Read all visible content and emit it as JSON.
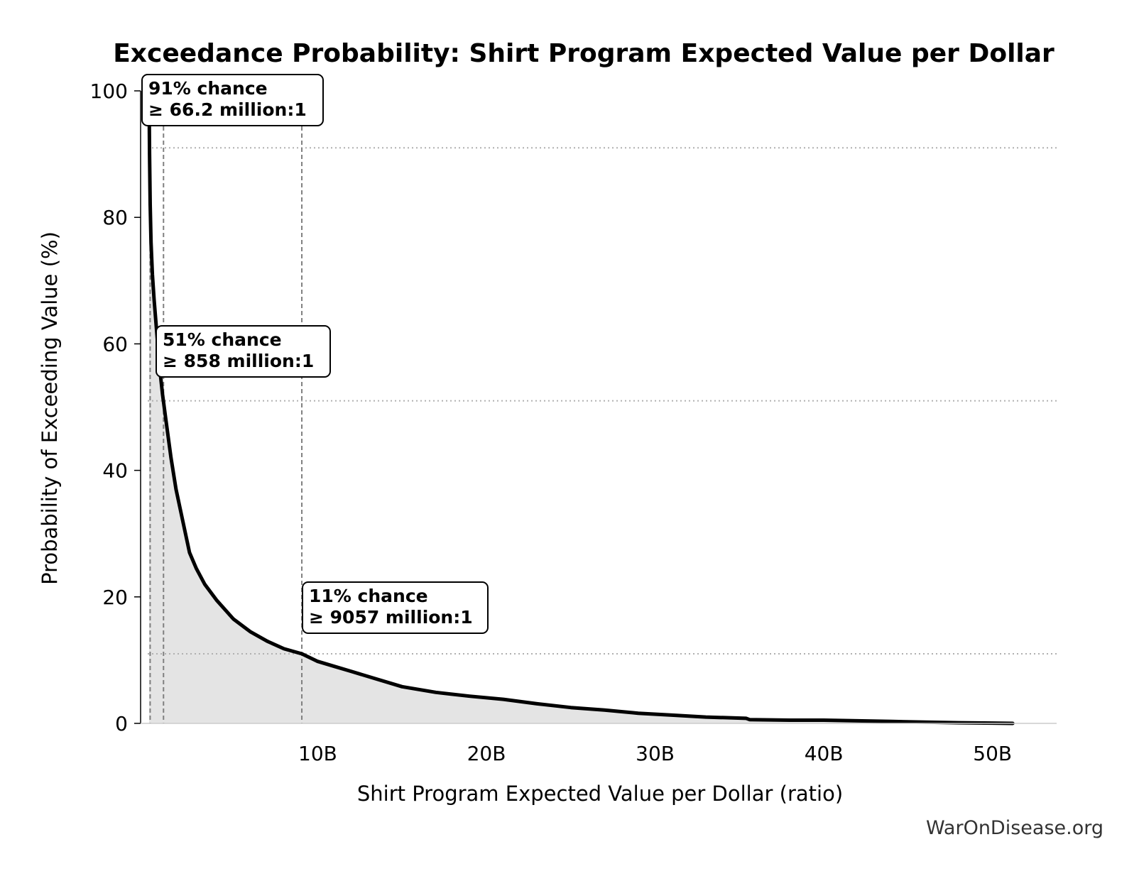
{
  "chart_data": {
    "type": "area",
    "title": "Exceedance Probability: Shirt Program Expected Value per Dollar",
    "xlabel": "Shirt Program Expected Value per Dollar (ratio)",
    "ylabel": "Probability of Exceeding Value (%)",
    "xlim": [
      -0.5,
      53.8
    ],
    "ylim": [
      0,
      100
    ],
    "x_unit": "billions (ratio)",
    "x_ticks": [
      {
        "value": 10,
        "label": "10B"
      },
      {
        "value": 20,
        "label": "20B"
      },
      {
        "value": 30,
        "label": "30B"
      },
      {
        "value": 40,
        "label": "40B"
      },
      {
        "value": 50,
        "label": "50B"
      }
    ],
    "y_ticks": [
      {
        "value": 0,
        "label": "0"
      },
      {
        "value": 20,
        "label": "20"
      },
      {
        "value": 40,
        "label": "40"
      },
      {
        "value": 60,
        "label": "60"
      },
      {
        "value": 80,
        "label": "80"
      },
      {
        "value": 100,
        "label": "100"
      }
    ],
    "grid": false,
    "series": [
      {
        "x": [
          0.0,
          0.03,
          0.07,
          0.12,
          0.2,
          0.3,
          0.45,
          0.6,
          0.8,
          1.0,
          1.3,
          1.6,
          2.0,
          2.4,
          2.8,
          3.3,
          4.0,
          5.0,
          6.0,
          7.0,
          8.0,
          9.06,
          10.0,
          11.0,
          12.0,
          13.5,
          15.0,
          17.0,
          19.0,
          21.0,
          23.0,
          25.0,
          27.0,
          29.0,
          31.0,
          33.0,
          35.4,
          35.6,
          38.0,
          40.0,
          42.0,
          44.0,
          46.0,
          48.0,
          50.0,
          51.2
        ],
        "y": [
          100,
          90,
          82,
          76,
          71,
          67,
          62,
          57,
          52,
          48,
          42,
          37,
          32,
          27,
          24.5,
          22,
          19.5,
          16.5,
          14.5,
          13,
          11.8,
          11,
          9.8,
          9,
          8.2,
          7,
          5.8,
          4.9,
          4.3,
          3.8,
          3.1,
          2.5,
          2.1,
          1.6,
          1.3,
          1.0,
          0.8,
          0.6,
          0.5,
          0.5,
          0.4,
          0.3,
          0.2,
          0.1,
          0.05,
          0.0
        ],
        "color": "#000000",
        "fill": "#e4e4e4"
      }
    ],
    "percentile_markers": [
      {
        "probability": 91,
        "x": 0.0662
      },
      {
        "probability": 51,
        "x": 0.858
      },
      {
        "probability": 11,
        "x": 9.057
      }
    ],
    "annotations": [
      {
        "line1": "91% chance",
        "line2": "≥ 66.2 million:1"
      },
      {
        "line1": "51% chance",
        "line2": "≥ 858 million:1"
      },
      {
        "line1": "11% chance",
        "line2": "≥ 9057 million:1"
      }
    ],
    "colors": {
      "curve": "#000000",
      "fill": "#e4e4e4",
      "vline": "#808080",
      "hline": "#b0b0b0",
      "axis": "#000000",
      "annotation_border": "#000000"
    }
  },
  "watermark": "WarOnDisease.org"
}
